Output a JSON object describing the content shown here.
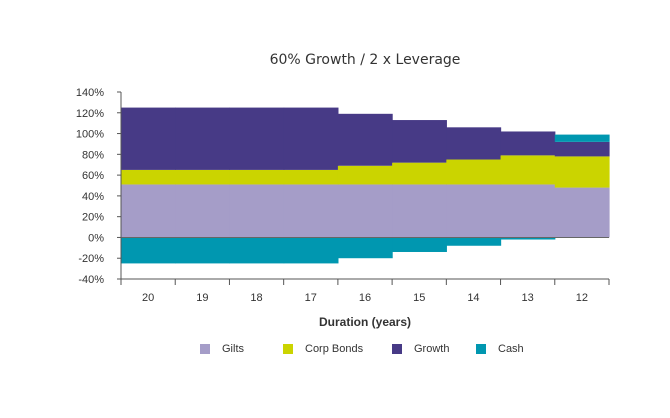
{
  "chart_data": {
    "type": "bar",
    "stacked": true,
    "title": "60% Growth / 2 x Leverage",
    "xlabel": "Duration (years)",
    "ylabel": "",
    "ylim": [
      -40,
      140
    ],
    "yticks": [
      -40,
      -20,
      0,
      20,
      40,
      60,
      80,
      100,
      120,
      140
    ],
    "ytick_labels": [
      "-40%",
      "-20%",
      "0%",
      "20%",
      "40%",
      "60%",
      "80%",
      "100%",
      "120%",
      "140%"
    ],
    "categories": [
      "20",
      "19",
      "18",
      "17",
      "16",
      "15",
      "14",
      "13",
      "12"
    ],
    "grid": false,
    "legend_position": "bottom",
    "series": [
      {
        "name": "Gilts",
        "color": "#a59dc8",
        "values": [
          51,
          51,
          51,
          51,
          51,
          51,
          51,
          51,
          48
        ]
      },
      {
        "name": "Corp Bonds",
        "color": "#cbd400",
        "values": [
          14,
          14,
          14,
          14,
          18,
          21,
          24,
          28,
          30
        ]
      },
      {
        "name": "Growth",
        "color": "#473a86",
        "values": [
          60,
          60,
          60,
          60,
          50,
          41,
          31,
          23,
          14
        ]
      },
      {
        "name": "Cash",
        "color": "#0097b0",
        "values": [
          -25,
          -25,
          -25,
          -25,
          -20,
          -14,
          -8,
          -2,
          7
        ]
      }
    ]
  }
}
